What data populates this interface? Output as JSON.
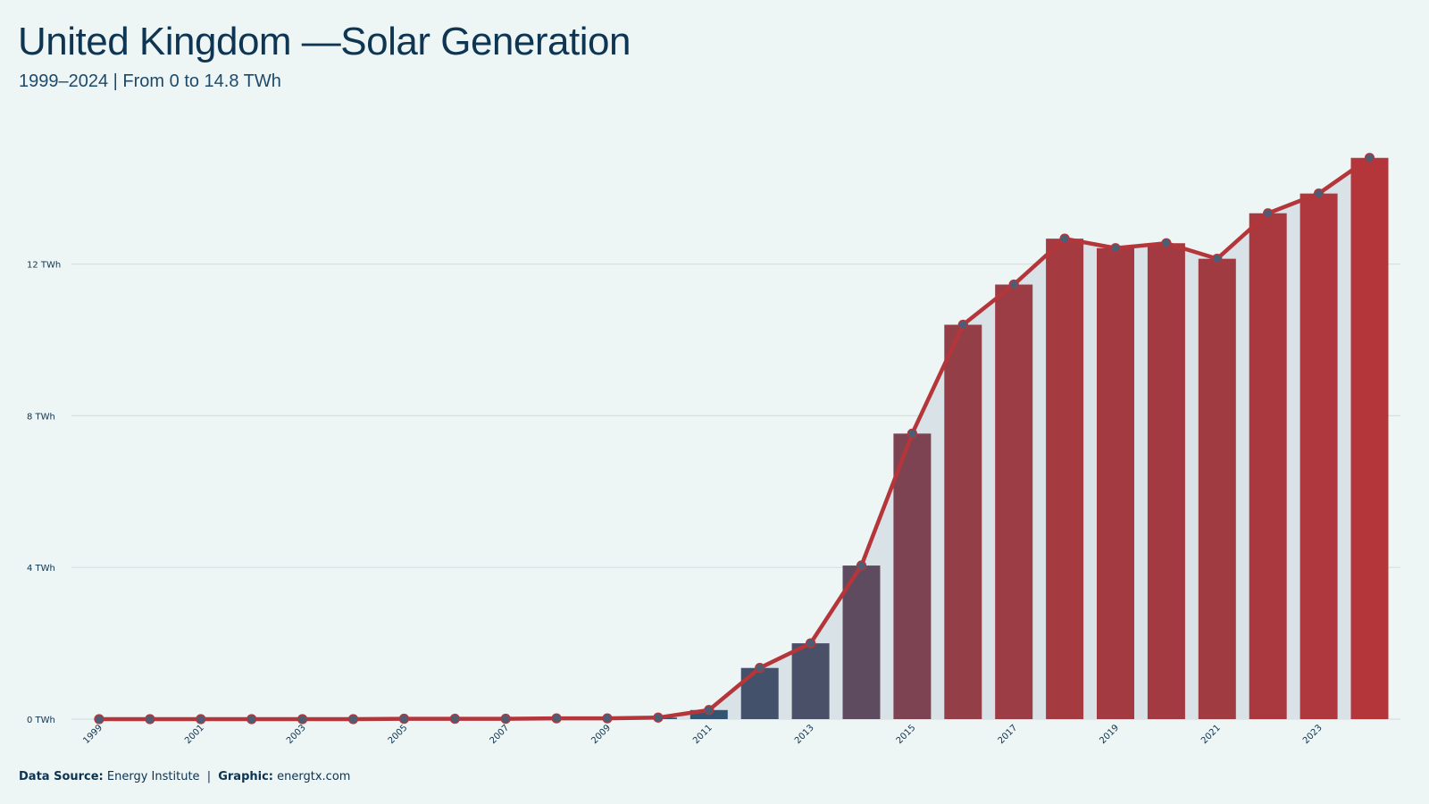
{
  "header": {
    "title": "United Kingdom —Solar Generation",
    "subtitle": "1999–2024 | From 0 to 14.8 TWh"
  },
  "footer": {
    "source_label": "Data Source:",
    "source_value": "Energy Institute",
    "separator": "|",
    "graphic_label": "Graphic:",
    "graphic_value": "energtx.com"
  },
  "colors": {
    "background": "#eef5f5",
    "line": "#b5363a",
    "bar_low": "#2f5673",
    "bar_high": "#b5363a",
    "area": "#d9e3e7",
    "grid": "#d6dfe2",
    "marker_fill": "#4e5d73",
    "text": "#0d3350"
  },
  "chart_data": {
    "type": "bar",
    "overlay": "line",
    "title": "United Kingdom —Solar Generation",
    "subtitle": "1999–2024 | From 0 to 14.8 TWh",
    "xlabel": "",
    "ylabel": "",
    "unit": "TWh",
    "ylim": [
      0,
      15.6
    ],
    "yticks": [
      0,
      4,
      8,
      12
    ],
    "ytick_labels": [
      "0 TWh",
      "4 TWh",
      "8 TWh",
      "12 TWh"
    ],
    "grid": true,
    "legend": "none",
    "categories": [
      "1999",
      "2000",
      "2001",
      "2002",
      "2003",
      "2004",
      "2005",
      "2006",
      "2007",
      "2008",
      "2009",
      "2010",
      "2011",
      "2012",
      "2013",
      "2014",
      "2015",
      "2016",
      "2017",
      "2018",
      "2019",
      "2020",
      "2021",
      "2022",
      "2023",
      "2024"
    ],
    "xtick_labels": [
      "1999",
      "2001",
      "2003",
      "2005",
      "2007",
      "2009",
      "2011",
      "2013",
      "2015",
      "2017",
      "2019",
      "2021",
      "2023"
    ],
    "values": [
      0.0,
      0.0,
      0.0,
      0.0,
      0.0,
      0.0,
      0.01,
      0.01,
      0.01,
      0.02,
      0.02,
      0.04,
      0.24,
      1.35,
      2.0,
      4.05,
      7.53,
      10.4,
      11.46,
      12.67,
      12.42,
      12.55,
      12.14,
      13.34,
      13.86,
      14.8
    ]
  }
}
